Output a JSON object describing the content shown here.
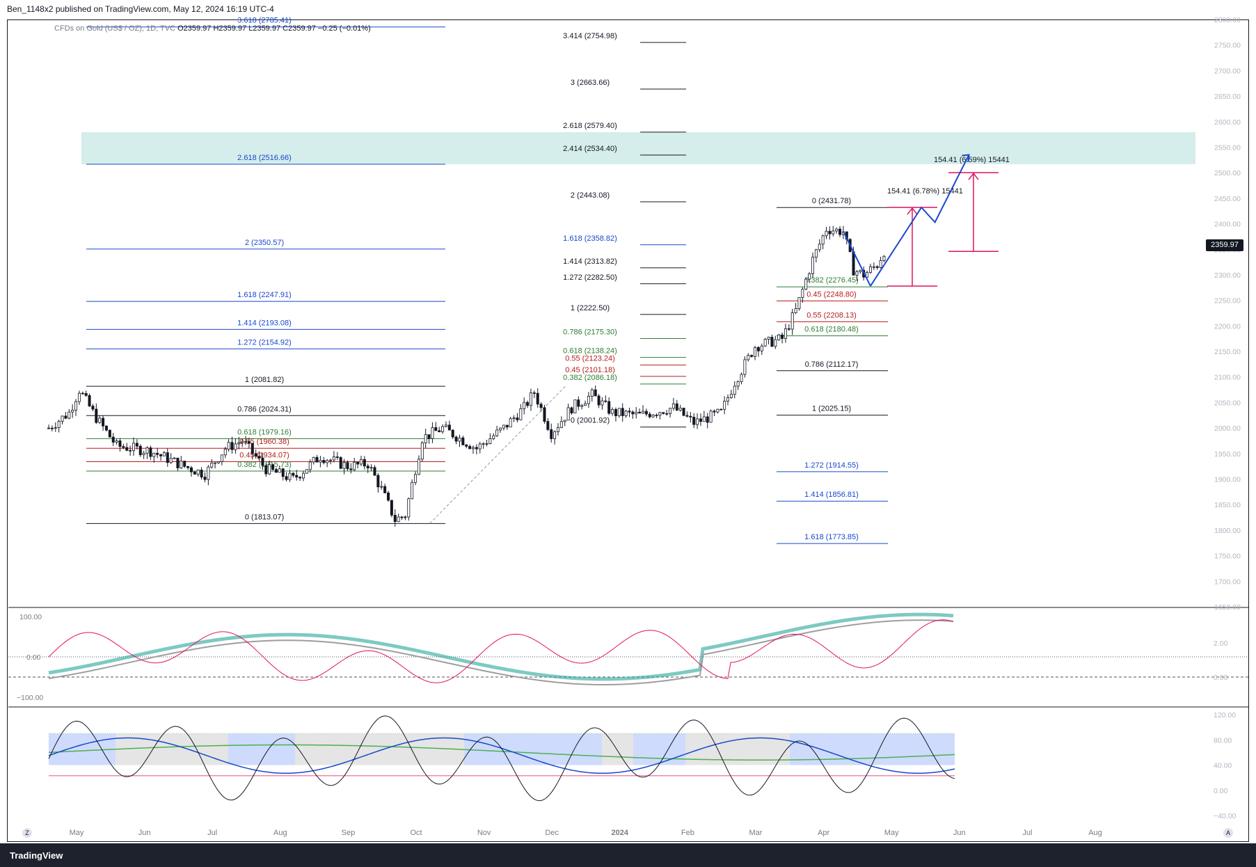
{
  "header": {
    "published": "Ben_1148x2 published on TradingView.com, May 12, 2024 16:19 UTC-4",
    "symbol_desc": "CFDs on Gold (US$ / OZ), 1D, TVC",
    "ohlc": "O2359.97  H2359.97  L2359.97  C2359.97  −0.25 (−0.01%)"
  },
  "footer": {
    "brand": "TradingView",
    "z_button": "Z",
    "a_button": "A"
  },
  "price_tag": "2359.97",
  "chart_data": {
    "type": "candlestick",
    "title": "CFDs on Gold (US$ / OZ), 1D",
    "ylim": [
      1650,
      2800
    ],
    "y_ticks": [
      1650,
      1700,
      1750,
      1800,
      1850,
      1900,
      1950,
      2000,
      2050,
      2100,
      2150,
      2200,
      2250,
      2300,
      2350,
      2400,
      2450,
      2500,
      2550,
      2600,
      2650,
      2700,
      2750,
      2800
    ],
    "x_labels": [
      "May",
      "Jun",
      "Jul",
      "Aug",
      "Sep",
      "Oct",
      "Nov",
      "Dec",
      "2024",
      "Feb",
      "Mar",
      "Apr",
      "May",
      "Jun",
      "Jul",
      "Aug"
    ],
    "price_path": [
      {
        "month": 0.0,
        "price": 2000
      },
      {
        "month": 0.3,
        "price": 2030
      },
      {
        "month": 0.45,
        "price": 2075
      },
      {
        "month": 0.7,
        "price": 2020
      },
      {
        "month": 1.0,
        "price": 1965
      },
      {
        "month": 1.5,
        "price": 1955
      },
      {
        "month": 2.0,
        "price": 1925
      },
      {
        "month": 2.3,
        "price": 1910
      },
      {
        "month": 2.6,
        "price": 1960
      },
      {
        "month": 2.85,
        "price": 1975
      },
      {
        "month": 3.2,
        "price": 1920
      },
      {
        "month": 3.6,
        "price": 1900
      },
      {
        "month": 4.0,
        "price": 1945
      },
      {
        "month": 4.4,
        "price": 1925
      },
      {
        "month": 4.7,
        "price": 1930
      },
      {
        "month": 4.9,
        "price": 1880
      },
      {
        "month": 5.1,
        "price": 1820
      },
      {
        "month": 5.25,
        "price": 1830
      },
      {
        "month": 5.5,
        "price": 1980
      },
      {
        "month": 5.8,
        "price": 2000
      },
      {
        "month": 6.3,
        "price": 1960
      },
      {
        "month": 6.7,
        "price": 2000
      },
      {
        "month": 7.0,
        "price": 2040
      },
      {
        "month": 7.15,
        "price": 2070
      },
      {
        "month": 7.4,
        "price": 1990
      },
      {
        "month": 7.7,
        "price": 2040
      },
      {
        "month": 8.0,
        "price": 2065
      },
      {
        "month": 8.3,
        "price": 2030
      },
      {
        "month": 8.7,
        "price": 2025
      },
      {
        "month": 9.2,
        "price": 2040
      },
      {
        "month": 9.5,
        "price": 2010
      },
      {
        "month": 9.9,
        "price": 2030
      },
      {
        "month": 10.1,
        "price": 2090
      },
      {
        "month": 10.4,
        "price": 2160
      },
      {
        "month": 10.8,
        "price": 2175
      },
      {
        "month": 11.0,
        "price": 2230
      },
      {
        "month": 11.25,
        "price": 2330
      },
      {
        "month": 11.45,
        "price": 2390
      },
      {
        "month": 11.7,
        "price": 2385
      },
      {
        "month": 11.85,
        "price": 2310
      },
      {
        "month": 12.0,
        "price": 2300
      },
      {
        "month": 12.2,
        "price": 2320
      },
      {
        "month": 12.35,
        "price": 2360
      }
    ],
    "fib_levels": [
      {
        "label": "3.618 (2785.41)",
        "price": 2785.41,
        "color": "#1848cc"
      },
      {
        "label": "2.618 (2516.66)",
        "price": 2516.66,
        "color": "#1848cc"
      },
      {
        "label": "2 (2350.57)",
        "price": 2350.57,
        "color": "#1848cc"
      },
      {
        "label": "1.618 (2247.91)",
        "price": 2247.91,
        "color": "#1848cc"
      },
      {
        "label": "1.414 (2193.08)",
        "price": 2193.08,
        "color": "#1848cc"
      },
      {
        "label": "1.272 (2154.92)",
        "price": 2154.92,
        "color": "#1848cc"
      },
      {
        "label": "1 (2081.82)",
        "price": 2081.82,
        "color": "#131722"
      },
      {
        "label": "0.786 (2024.31)",
        "price": 2024.31,
        "color": "#131722"
      },
      {
        "label": "0.618 (1979.16)",
        "price": 1979.16,
        "color": "#2e7d32"
      },
      {
        "label": "0.55 (1960.38)",
        "price": 1960.38,
        "color": "#b71c1c"
      },
      {
        "label": "0.45 (1934.07)",
        "price": 1934.07,
        "color": "#b71c1c"
      },
      {
        "label": "0.382 (1915.73)",
        "price": 1915.73,
        "color": "#2e7d32"
      },
      {
        "label": "0 (1813.07)",
        "price": 1813.07,
        "color": "#131722"
      },
      {
        "label": "3.414 (2754.98)",
        "price": 2754.98,
        "color": "#131722"
      },
      {
        "label": "3 (2663.66)",
        "price": 2663.66,
        "color": "#131722"
      },
      {
        "label": "2.618 (2579.40)",
        "price": 2579.4,
        "color": "#131722"
      },
      {
        "label": "2.414 (2534.40)",
        "price": 2534.4,
        "color": "#131722"
      },
      {
        "label": "2 (2443.08)",
        "price": 2443.08,
        "color": "#131722"
      },
      {
        "label": "1.618 (2358.82)",
        "price": 2358.82,
        "color": "#1848cc"
      },
      {
        "label": "1.414 (2313.82)",
        "price": 2313.82,
        "color": "#131722"
      },
      {
        "label": "1.272 (2282.50)",
        "price": 2282.5,
        "color": "#131722"
      },
      {
        "label": "1 (2222.50)",
        "price": 2222.5,
        "color": "#131722"
      },
      {
        "label": "0.786 (2175.30)",
        "price": 2175.3,
        "color": "#2e7d32"
      },
      {
        "label": "0.618 (2138.24)",
        "price": 2138.24,
        "color": "#2e7d32"
      },
      {
        "label": "0.55 (2123.24)",
        "price": 2123.24,
        "color": "#b71c1c"
      },
      {
        "label": "0.45 (2101.18)",
        "price": 2101.18,
        "color": "#b71c1c"
      },
      {
        "label": "0.382 (2086.18)",
        "price": 2086.18,
        "color": "#2e7d32"
      },
      {
        "label": "0 (2001.92)",
        "price": 2001.92,
        "color": "#131722"
      },
      {
        "label": "0 (2431.78)",
        "price": 2431.78,
        "color": "#131722"
      },
      {
        "label": "0.382 (2276.45)",
        "price": 2276.45,
        "color": "#2e7d32"
      },
      {
        "label": "0.45 (2248.80)",
        "price": 2248.8,
        "color": "#b71c1c"
      },
      {
        "label": "0.55 (2208.13)",
        "price": 2208.13,
        "color": "#b71c1c"
      },
      {
        "label": "0.618 (2180.48)",
        "price": 2180.48,
        "color": "#2e7d32"
      },
      {
        "label": "0.786 (2112.17)",
        "price": 2112.17,
        "color": "#131722"
      },
      {
        "label": "1 (2025.15)",
        "price": 2025.15,
        "color": "#131722"
      },
      {
        "label": "1.272 (1914.55)",
        "price": 1914.55,
        "color": "#1848cc"
      },
      {
        "label": "1.414 (1856.81)",
        "price": 1856.81,
        "color": "#1848cc"
      },
      {
        "label": "1.618 (1773.85)",
        "price": 1773.85,
        "color": "#1848cc"
      }
    ],
    "target_zone": {
      "low": 2516.66,
      "high": 2579.4
    },
    "measure_labels": [
      "154.41 (6.78%) 15441",
      "154.41 (6.59%) 15441"
    ],
    "projection_path": [
      {
        "month": 12.1,
        "price": 2278
      },
      {
        "month": 12.85,
        "price": 2432
      },
      {
        "month": 13.05,
        "price": 2403
      },
      {
        "month": 13.55,
        "price": 2535
      }
    ],
    "osc1": {
      "ylim": [
        -100,
        100
      ],
      "ticks_left": [
        "100.00",
        "0.00",
        "−100.00"
      ],
      "ticks_right": [
        "2.00",
        "0.00"
      ]
    },
    "osc2": {
      "ylim": [
        -40,
        120
      ],
      "ticks_right": [
        "120.00",
        "80.00",
        "40.00",
        "0.00",
        "−40.00"
      ]
    }
  }
}
